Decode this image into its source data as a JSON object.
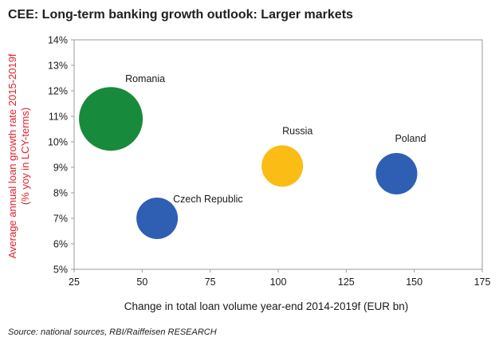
{
  "title": "CEE: Long-term banking growth outlook: Larger markets",
  "source": "Source: national sources, RBI/Raiffeisen RESEARCH",
  "colors": {
    "axis_title_y": "#e0222b",
    "frame": "#9a9a9a",
    "green": "#188a3c",
    "blue": "#2f5fb3",
    "yellow": "#fbbc15"
  },
  "chart_data": {
    "type": "scatter",
    "title": "CEE: Long-term banking growth outlook: Larger markets",
    "xlabel": "Change in total loan volume year-end 2014-2019f (EUR bn)",
    "ylabel": [
      "Average annual loan growth rate 2015-2019f",
      "(% yoy in LCY-terms)"
    ],
    "xlim": [
      25,
      175
    ],
    "ylim": [
      5,
      14
    ],
    "xticks": [
      "25",
      "50",
      "75",
      "100",
      "125",
      "150",
      "175"
    ],
    "yticks": [
      "5%",
      "6%",
      "7%",
      "8%",
      "9%",
      "10%",
      "11%",
      "12%",
      "13%",
      "14%"
    ],
    "grid": false,
    "legend": "none",
    "points": [
      {
        "label": "Romania",
        "x": 38.5,
        "y": 10.9,
        "color": "green",
        "size": "large"
      },
      {
        "label": "Czech Republic",
        "x": 55.5,
        "y": 7.0,
        "color": "blue",
        "size": "medium"
      },
      {
        "label": "Russia",
        "x": 101.5,
        "y": 9.05,
        "color": "yellow",
        "size": "medium"
      },
      {
        "label": "Poland",
        "x": 143.5,
        "y": 8.75,
        "color": "blue",
        "size": "medium"
      }
    ]
  }
}
